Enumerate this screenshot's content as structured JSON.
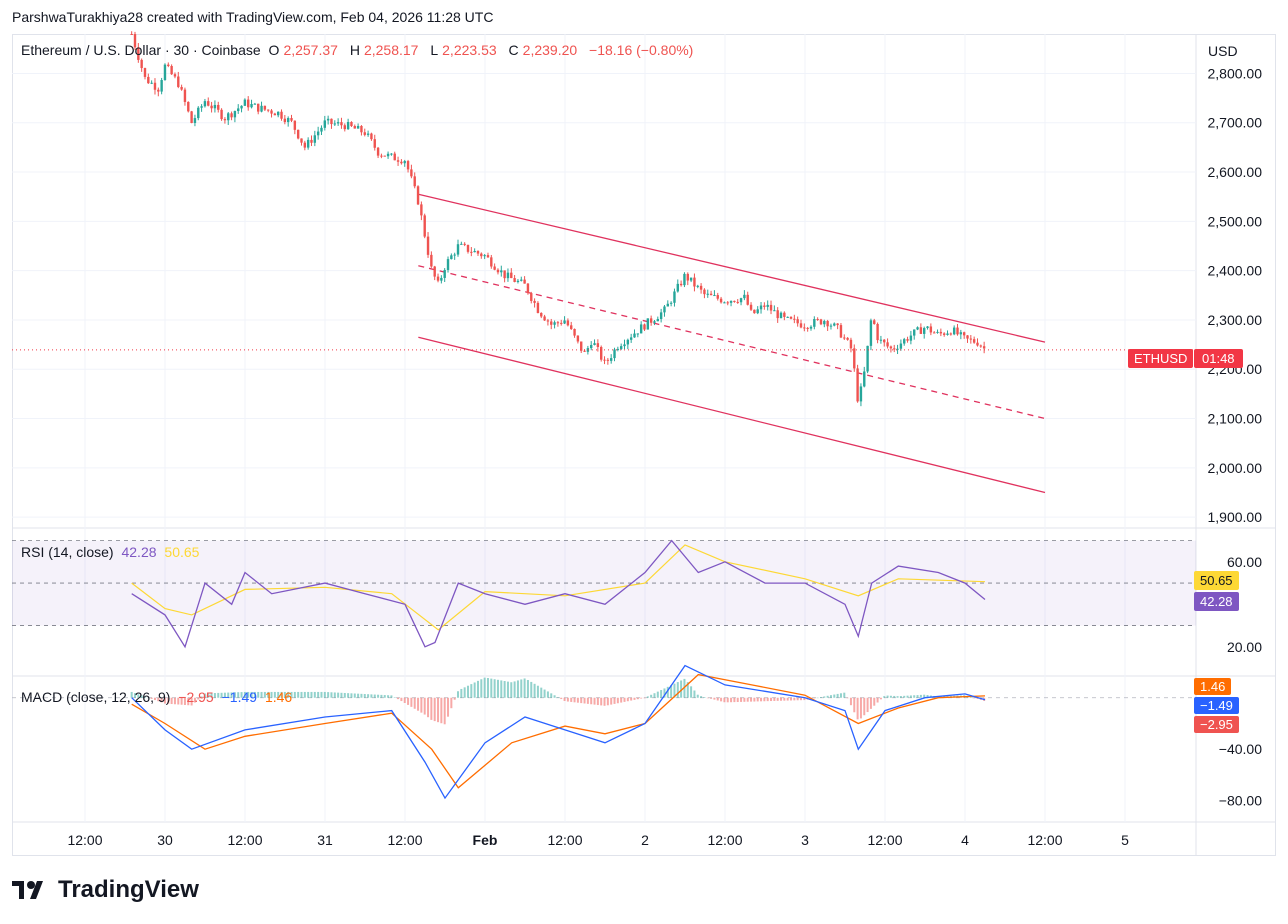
{
  "credit": "ParshwaTurakhiya28 created with TradingView.com, Feb 04, 2026 11:28 UTC",
  "legend": {
    "symbol": "Ethereum / U.S. Dollar · 30 · Coinbase",
    "o_label": "O",
    "o": "2,257.37",
    "h_label": "H",
    "h": "2,258.17",
    "l_label": "L",
    "l": "2,223.53",
    "c_label": "C",
    "c": "2,239.20",
    "change": "−18.16 (−0.80%)"
  },
  "currency": "USD",
  "price_tag": {
    "symbol": "ETHUSD",
    "countdown": "01:48"
  },
  "rsi": {
    "label": "RSI (14, close)",
    "value": "42.28",
    "ma": "50.65",
    "ticks": [
      "60.00",
      "20.00"
    ]
  },
  "macd": {
    "label": "MACD (close, 12, 26, 9)",
    "hist": "−2.95",
    "macd": "−1.49",
    "signal": "1.46",
    "ticks": [
      "−40.00",
      "−80.00"
    ]
  },
  "time_axis": [
    "12:00",
    "30",
    "12:00",
    "31",
    "12:00",
    "Feb",
    "12:00",
    "2",
    "12:00",
    "3",
    "12:00",
    "4",
    "12:00",
    "5"
  ],
  "brand": "TradingView",
  "colors": {
    "up": "#26a69a",
    "down": "#ef5350",
    "channel": "#e0325e",
    "rsi": "#7e57c2",
    "rsi_ma": "#fdd835",
    "macd": "#2962ff",
    "signal": "#ff6d00"
  },
  "chart_data": {
    "type": "candlestick",
    "ylim": [
      1880,
      2880
    ],
    "yticks": [
      2800,
      2700,
      2600,
      2500,
      2400,
      2300,
      2200,
      2100,
      2000,
      1900
    ],
    "last_price": 2239.2,
    "close_path": [
      [
        "Jan 29 19:00",
        2880
      ],
      [
        "Jan 29 21:00",
        2790
      ],
      [
        "Jan 29 23:00",
        2770
      ],
      [
        "Jan 30 00:00",
        2815
      ],
      [
        "Jan 30 02:00",
        2780
      ],
      [
        "Jan 30 04:00",
        2700
      ],
      [
        "Jan 30 06:00",
        2745
      ],
      [
        "Jan 30 09:00",
        2710
      ],
      [
        "Jan 30 12:00",
        2740
      ],
      [
        "Jan 30 14:00",
        2730
      ],
      [
        "Jan 30 17:00",
        2720
      ],
      [
        "Jan 30 19:00",
        2700
      ],
      [
        "Jan 30 21:00",
        2650
      ],
      [
        "Jan 31 00:00",
        2700
      ],
      [
        "Jan 31 03:00",
        2695
      ],
      [
        "Jan 31 06:00",
        2680
      ],
      [
        "Jan 31 08:00",
        2640
      ],
      [
        "Jan 31 10:00",
        2630
      ],
      [
        "Jan 31 12:00",
        2625
      ],
      [
        "Jan 31 14:00",
        2540
      ],
      [
        "Jan 31 16:00",
        2400
      ],
      [
        "Jan 31 17:00",
        2370
      ],
      [
        "Jan 31 18:00",
        2410
      ],
      [
        "Jan 31 20:00",
        2450
      ],
      [
        "Feb 01 00:00",
        2430
      ],
      [
        "Feb 01 03:00",
        2390
      ],
      [
        "Feb 01 06:00",
        2370
      ],
      [
        "Feb 01 08:00",
        2320
      ],
      [
        "Feb 01 10:00",
        2290
      ],
      [
        "Feb 01 12:00",
        2300
      ],
      [
        "Feb 01 14:00",
        2250
      ],
      [
        "Feb 01 15:00",
        2230
      ],
      [
        "Feb 01 16:00",
        2260
      ],
      [
        "Feb 01 18:00",
        2210
      ],
      [
        "Feb 01 20:00",
        2250
      ],
      [
        "Feb 01 22:00",
        2270
      ],
      [
        "Feb 02 00:00",
        2290
      ],
      [
        "Feb 02 03:00",
        2320
      ],
      [
        "Feb 02 06:00",
        2390
      ],
      [
        "Feb 02 09:00",
        2350
      ],
      [
        "Feb 02 12:00",
        2340
      ],
      [
        "Feb 02 15:00",
        2345
      ],
      [
        "Feb 02 16:00",
        2310
      ],
      [
        "Feb 02 18:00",
        2330
      ],
      [
        "Feb 02 21:00",
        2300
      ],
      [
        "Feb 03 00:00",
        2290
      ],
      [
        "Feb 03 03:00",
        2300
      ],
      [
        "Feb 03 05:00",
        2280
      ],
      [
        "Feb 03 07:00",
        2240
      ],
      [
        "Feb 03 08:00",
        2130
      ],
      [
        "Feb 03 09:00",
        2200
      ],
      [
        "Feb 03 10:00",
        2310
      ],
      [
        "Feb 03 11:00",
        2260
      ],
      [
        "Feb 03 13:00",
        2240
      ],
      [
        "Feb 03 16:00",
        2270
      ],
      [
        "Feb 03 18:00",
        2285
      ],
      [
        "Feb 03 20:00",
        2270
      ],
      [
        "Feb 03 22:00",
        2280
      ],
      [
        "Feb 04 00:00",
        2260
      ],
      [
        "Feb 04 02:00",
        2255
      ],
      [
        "Feb 04 03:00",
        2240
      ]
    ],
    "channel": {
      "upper": [
        [
          "Jan 31 14:00",
          2555
        ],
        [
          "Feb 04 12:00",
          2255
        ]
      ],
      "lower": [
        [
          "Jan 31 14:00",
          2265
        ],
        [
          "Feb 04 12:00",
          1950
        ]
      ],
      "mid": [
        [
          "Jan 31 14:00",
          2410
        ],
        [
          "Feb 04 12:00",
          2100
        ]
      ]
    },
    "rsi_path": [
      [
        "Jan 29 19:00",
        45
      ],
      [
        "Jan 30 00:00",
        35
      ],
      [
        "Jan 30 03:00",
        20
      ],
      [
        "Jan 30 06:00",
        50
      ],
      [
        "Jan 30 10:00",
        40
      ],
      [
        "Jan 30 12:00",
        55
      ],
      [
        "Jan 30 16:00",
        45
      ],
      [
        "Jan 31 00:00",
        50
      ],
      [
        "Jan 31 06:00",
        45
      ],
      [
        "Jan 31 12:00",
        40
      ],
      [
        "Jan 31 15:00",
        20
      ],
      [
        "Jan 31 16:30",
        22
      ],
      [
        "Jan 31 20:00",
        50
      ],
      [
        "Feb 01 00:00",
        45
      ],
      [
        "Feb 01 06:00",
        40
      ],
      [
        "Feb 01 12:00",
        45
      ],
      [
        "Feb 01 18:00",
        40
      ],
      [
        "Feb 02 00:00",
        55
      ],
      [
        "Feb 02 04:00",
        70
      ],
      [
        "Feb 02 08:00",
        55
      ],
      [
        "Feb 02 12:00",
        60
      ],
      [
        "Feb 02 18:00",
        50
      ],
      [
        "Feb 03 00:00",
        50
      ],
      [
        "Feb 03 06:00",
        40
      ],
      [
        "Feb 03 08:00",
        25
      ],
      [
        "Feb 03 10:00",
        50
      ],
      [
        "Feb 03 14:00",
        58
      ],
      [
        "Feb 03 20:00",
        55
      ],
      [
        "Feb 04 00:00",
        50
      ],
      [
        "Feb 04 03:00",
        42.28
      ]
    ],
    "rsi_ma_path": [
      [
        "Jan 29 19:00",
        50
      ],
      [
        "Jan 30 00:00",
        38
      ],
      [
        "Jan 30 04:00",
        35
      ],
      [
        "Jan 30 12:00",
        47
      ],
      [
        "Jan 31 00:00",
        48
      ],
      [
        "Jan 31 10:00",
        45
      ],
      [
        "Jan 31 17:00",
        28
      ],
      [
        "Feb 01 00:00",
        46
      ],
      [
        "Feb 01 12:00",
        44
      ],
      [
        "Feb 02 00:00",
        50
      ],
      [
        "Feb 02 06:00",
        68
      ],
      [
        "Feb 02 12:00",
        60
      ],
      [
        "Feb 03 00:00",
        52
      ],
      [
        "Feb 03 08:00",
        44
      ],
      [
        "Feb 03 14:00",
        52
      ],
      [
        "Feb 04 03:00",
        50.65
      ]
    ],
    "rsi_ylim": [
      10,
      75
    ],
    "rsi_bands": [
      70,
      50,
      30
    ],
    "macd_ylim": [
      -95,
      20
    ],
    "macd_path": [
      [
        "Jan 29 19:00",
        0
      ],
      [
        "Jan 30 00:00",
        -25
      ],
      [
        "Jan 30 04:00",
        -40
      ],
      [
        "Jan 30 12:00",
        -25
      ],
      [
        "Jan 31 00:00",
        -15
      ],
      [
        "Jan 31 10:00",
        -10
      ],
      [
        "Jan 31 15:00",
        -50
      ],
      [
        "Jan 31 18:00",
        -78
      ],
      [
        "Feb 01 00:00",
        -35
      ],
      [
        "Feb 01 06:00",
        -15
      ],
      [
        "Feb 01 12:00",
        -25
      ],
      [
        "Feb 01 18:00",
        -35
      ],
      [
        "Feb 02 00:00",
        -20
      ],
      [
        "Feb 02 06:00",
        25
      ],
      [
        "Feb 02 12:00",
        10
      ],
      [
        "Feb 02 18:00",
        5
      ],
      [
        "Feb 03 00:00",
        0
      ],
      [
        "Feb 03 06:00",
        -10
      ],
      [
        "Feb 03 08:00",
        -40
      ],
      [
        "Feb 03 12:00",
        -10
      ],
      [
        "Feb 03 18:00",
        0
      ],
      [
        "Feb 04 00:00",
        3
      ],
      [
        "Feb 04 03:00",
        -1.49
      ]
    ],
    "signal_path": [
      [
        "Jan 29 19:00",
        -5
      ],
      [
        "Jan 30 00:00",
        -20
      ],
      [
        "Jan 30 06:00",
        -40
      ],
      [
        "Jan 30 12:00",
        -30
      ],
      [
        "Jan 31 00:00",
        -20
      ],
      [
        "Jan 31 10:00",
        -12
      ],
      [
        "Jan 31 16:00",
        -40
      ],
      [
        "Jan 31 20:00",
        -70
      ],
      [
        "Feb 01 04:00",
        -35
      ],
      [
        "Feb 01 12:00",
        -22
      ],
      [
        "Feb 01 18:00",
        -28
      ],
      [
        "Feb 02 00:00",
        -20
      ],
      [
        "Feb 02 08:00",
        18
      ],
      [
        "Feb 02 16:00",
        10
      ],
      [
        "Feb 03 00:00",
        2
      ],
      [
        "Feb 03 08:00",
        -20
      ],
      [
        "Feb 03 14:00",
        -8
      ],
      [
        "Feb 03 20:00",
        0
      ],
      [
        "Feb 04 03:00",
        1.46
      ]
    ]
  }
}
